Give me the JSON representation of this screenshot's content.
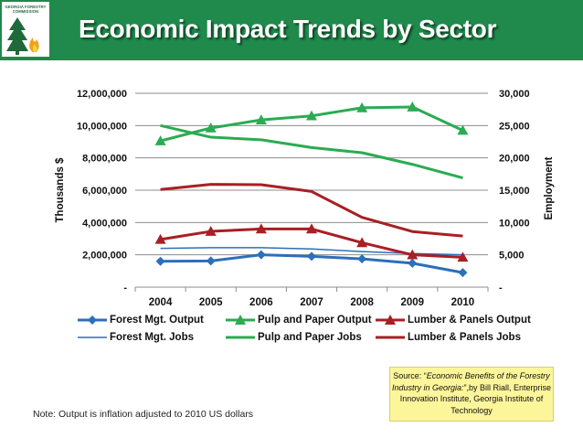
{
  "header": {
    "title": "Economic Impact Trends by Sector",
    "logo_text_lines": [
      "GEORGIA FORESTRY",
      "COMMISSION"
    ]
  },
  "colors": {
    "header_green": "#1f8a4c",
    "forest_blue": "#2c6fba",
    "pulp_green": "#2bab52",
    "lumber_red": "#a81f24",
    "source_bg": "#fdf59a"
  },
  "chart_data": {
    "type": "line",
    "categories": [
      "2004",
      "2005",
      "2006",
      "2007",
      "2008",
      "2009",
      "2010"
    ],
    "ylabel": "Thousands $",
    "y2label": "Employment",
    "ylim": [
      0,
      12000000
    ],
    "y2lim": [
      0,
      30000
    ],
    "yticks": [
      "-",
      "2,000,000",
      "4,000,000",
      "6,000,000",
      "8,000,000",
      "10,000,000",
      "12,000,000"
    ],
    "y2ticks": [
      "-",
      "5,000",
      "10,000",
      "15,000",
      "20,000",
      "25,000",
      "30,000"
    ],
    "series": [
      {
        "name": "Forest Mgt. Output",
        "axis": "left",
        "color": "#2c6fba",
        "marker": "diamond",
        "width": 3,
        "values": [
          1600000,
          1620000,
          2000000,
          1900000,
          1750000,
          1480000,
          900000
        ]
      },
      {
        "name": "Pulp and Paper Output",
        "axis": "left",
        "color": "#2bab52",
        "marker": "triangle",
        "width": 3,
        "values": [
          9050000,
          9850000,
          10350000,
          10600000,
          11100000,
          11150000,
          9700000
        ]
      },
      {
        "name": "Lumber & Panels Output",
        "axis": "left",
        "color": "#a81f24",
        "marker": "triangle",
        "width": 3,
        "values": [
          2950000,
          3450000,
          3600000,
          3600000,
          2750000,
          2000000,
          1850000
        ]
      },
      {
        "name": "Forest Mgt. Jobs",
        "axis": "right",
        "color": "#2c6fba",
        "marker": "none",
        "width": 1.5,
        "values": [
          6000,
          6100,
          6100,
          5900,
          5500,
          5200,
          5000
        ]
      },
      {
        "name": "Pulp and Paper Jobs",
        "axis": "right",
        "color": "#2bab52",
        "marker": "none",
        "width": 3,
        "values": [
          25000,
          23200,
          22800,
          21600,
          20800,
          19000,
          16900
        ]
      },
      {
        "name": "Lumber & Panels Jobs",
        "axis": "right",
        "color": "#a81f24",
        "marker": "none",
        "width": 3,
        "values": [
          15100,
          15900,
          15850,
          14800,
          10800,
          8600,
          7900
        ]
      }
    ]
  },
  "note": "Note: Output is inflation adjusted to 2010 US dollars",
  "source": {
    "prefix": "Source: “",
    "italic": "Economic Benefits of the Forestry Industry in Georgia:",
    "suffix": "”,by Bill Riall, Enterprise Innovation Institute, Georgia Institute of Technology"
  }
}
